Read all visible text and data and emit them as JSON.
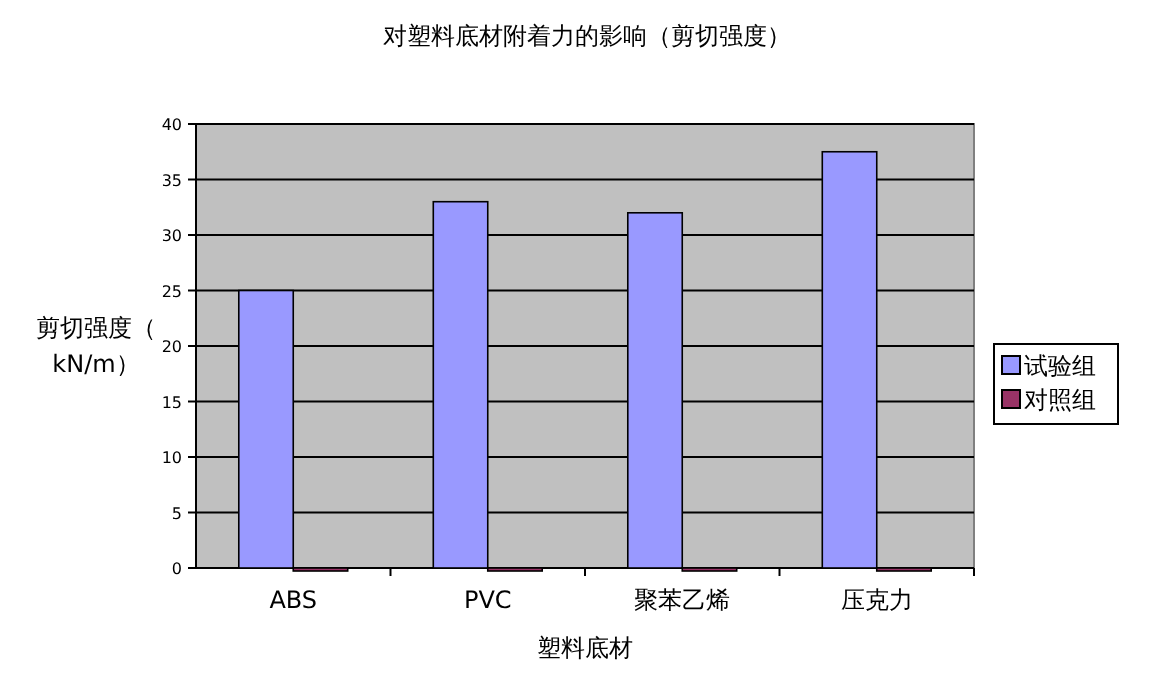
{
  "chart_data": {
    "type": "bar",
    "title": "对塑料底材附着力的影响（剪切强度）",
    "xlabel": "塑料底材",
    "ylabel": "剪切强度（kN/m）",
    "categories": [
      "ABS",
      "PVC",
      "聚苯乙烯",
      "压克力"
    ],
    "series": [
      {
        "name": "试验组",
        "color": "#9999ff",
        "values": [
          25,
          33,
          32,
          37.5
        ]
      },
      {
        "name": "对照组",
        "color": "#993366",
        "values": [
          0,
          0,
          0,
          0
        ]
      }
    ],
    "ylim": [
      0,
      40
    ],
    "yticks": [
      0,
      5,
      10,
      15,
      20,
      25,
      30,
      35,
      40
    ],
    "grid": "y",
    "legend": "right"
  }
}
